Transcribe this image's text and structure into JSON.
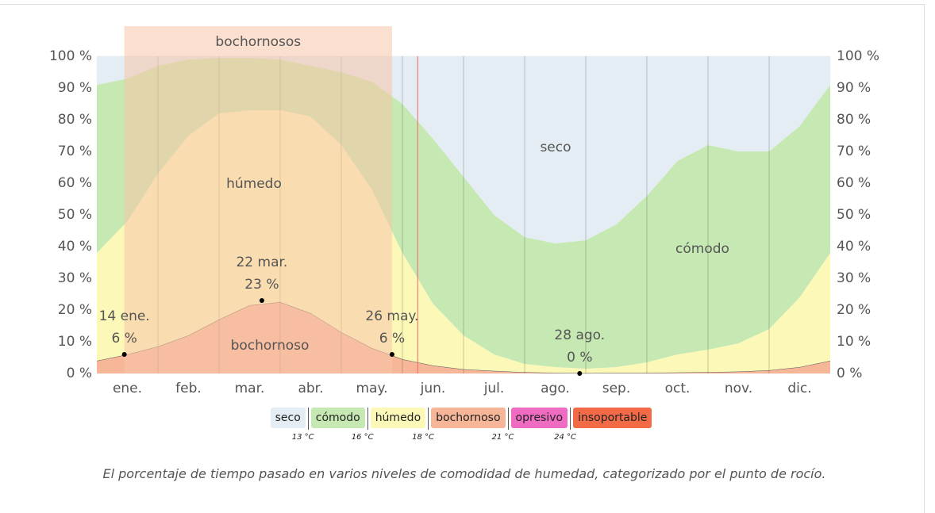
{
  "chart_data": {
    "type": "stacked_area",
    "x": [
      0,
      0.5,
      1,
      1.5,
      2,
      2.5,
      3,
      3.5,
      4,
      4.5,
      5,
      5.5,
      6,
      6.5,
      7,
      7.5,
      8,
      8.5,
      9,
      9.5,
      10,
      10.5,
      11,
      11.5,
      12
    ],
    "xlim": [
      0,
      12
    ],
    "xticks": [
      {
        "value": 0.5,
        "label": "ene."
      },
      {
        "value": 1.5,
        "label": "feb."
      },
      {
        "value": 2.5,
        "label": "mar."
      },
      {
        "value": 3.5,
        "label": "abr."
      },
      {
        "value": 4.5,
        "label": "may."
      },
      {
        "value": 5.5,
        "label": "jun."
      },
      {
        "value": 6.5,
        "label": "jul."
      },
      {
        "value": 7.5,
        "label": "ago."
      },
      {
        "value": 8.5,
        "label": "sep."
      },
      {
        "value": 9.5,
        "label": "oct."
      },
      {
        "value": 10.5,
        "label": "nov."
      },
      {
        "value": 11.5,
        "label": "dic."
      }
    ],
    "xgrid": [
      1,
      2,
      3,
      4,
      5,
      6,
      7,
      8,
      9,
      10,
      11
    ],
    "ylim": [
      0,
      100
    ],
    "yticks": [
      {
        "value": 0,
        "label": "0 %"
      },
      {
        "value": 10,
        "label": "10 %"
      },
      {
        "value": 20,
        "label": "20 %"
      },
      {
        "value": 30,
        "label": "30 %"
      },
      {
        "value": 40,
        "label": "40 %"
      },
      {
        "value": 50,
        "label": "50 %"
      },
      {
        "value": 60,
        "label": "60 %"
      },
      {
        "value": 70,
        "label": "70 %"
      },
      {
        "value": 80,
        "label": "80 %"
      },
      {
        "value": 90,
        "label": "90 %"
      },
      {
        "value": 100,
        "label": "100 %"
      }
    ],
    "series": [
      {
        "name": "bochornoso",
        "color": "#f8b699",
        "values": [
          4,
          6,
          8.5,
          12,
          17,
          21.5,
          22.5,
          19,
          13,
          8,
          4.5,
          2.5,
          1.3,
          0.8,
          0.4,
          0.2,
          0.1,
          0.2,
          0.2,
          0.3,
          0.4,
          0.6,
          1,
          2,
          4
        ]
      },
      {
        "name": "húmedo",
        "color": "#fbf8b8",
        "values": [
          34,
          42,
          54.5,
          63,
          65,
          61.5,
          60.5,
          62,
          59,
          50,
          33.5,
          19.5,
          10.7,
          5.2,
          2.6,
          1.8,
          1.4,
          1.8,
          3.3,
          5.7,
          7.1,
          8.9,
          13,
          22,
          34
        ]
      },
      {
        "name": "cómodo",
        "color": "#c6e8b2",
        "values": [
          53,
          45,
          34,
          24,
          17.5,
          16.5,
          16,
          16,
          23,
          34,
          47,
          52,
          50,
          44,
          40,
          39,
          40.5,
          45,
          52.5,
          61,
          64.5,
          60.5,
          56,
          54,
          53
        ]
      },
      {
        "name": "seco",
        "color": "#e3edf3",
        "values": [
          9,
          7,
          3,
          1,
          0.5,
          0.5,
          1,
          3,
          5,
          8,
          15,
          26,
          38,
          50,
          57,
          59,
          58,
          53,
          44,
          33,
          28,
          30,
          30,
          22,
          9
        ]
      }
    ],
    "area_labels": [
      "seco",
      "cómodo",
      "húmedo",
      "bochornoso"
    ],
    "highlight": {
      "label": "bochornosos",
      "x": [
        0.45,
        4.83
      ],
      "color": "rgba(248,196,168,0.55)"
    },
    "today_x": 5.25,
    "annotations": [
      {
        "x": 0.45,
        "value": 6,
        "date": "14 ene.",
        "label": "6 %"
      },
      {
        "x": 2.7,
        "value": 23,
        "date": "22 mar.",
        "label": "23 %"
      },
      {
        "x": 4.83,
        "value": 6,
        "date": "26 may.",
        "label": "6 %"
      },
      {
        "x": 7.9,
        "value": 0,
        "date": "28 ago.",
        "label": "0 %"
      }
    ],
    "extra_legend": [
      {
        "name": "opresivo",
        "color": "#f06bc2"
      },
      {
        "name": "insoportable",
        "color": "#f36b46"
      }
    ],
    "thresholds": [
      "13 °C",
      "16 °C",
      "18 °C",
      "21 °C",
      "24 °C"
    ],
    "caption": "El porcentaje de tiempo pasado en varios niveles de comodidad de humedad, categorizado por el punto de rocío."
  }
}
